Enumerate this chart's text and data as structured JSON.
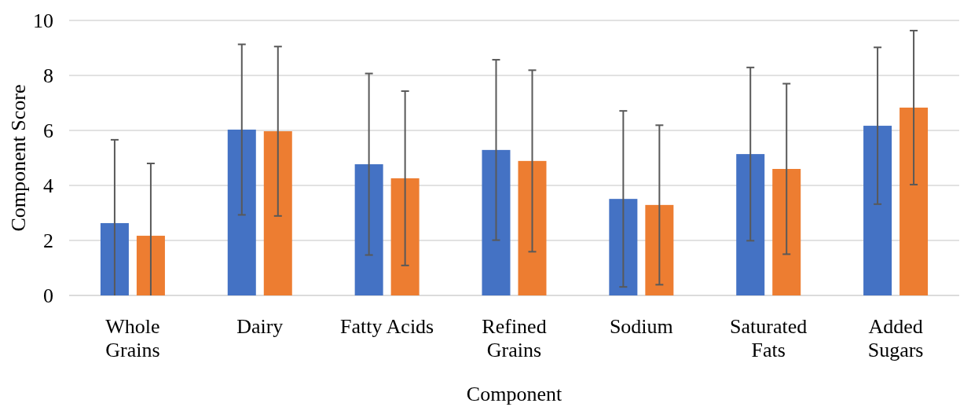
{
  "chart_data": {
    "type": "bar",
    "xlabel": "Component",
    "ylabel": "Component Score",
    "categories": [
      "Whole\nGrains",
      "Dairy",
      "Fatty Acids",
      "Refined\nGrains",
      "Sodium",
      "Saturated\nFats",
      "Added\nSugars"
    ],
    "series": [
      {
        "color": "#4472c4",
        "values": [
          2.63,
          6.03,
          4.77,
          5.29,
          3.51,
          5.14,
          6.17
        ],
        "errors": [
          [
            0,
            5.66
          ],
          3.1,
          3.3,
          3.28,
          3.2,
          3.15,
          2.85
        ]
      },
      {
        "color": "#ed7d31",
        "values": [
          2.17,
          5.97,
          4.26,
          4.89,
          3.29,
          4.6,
          6.83
        ],
        "errors": [
          [
            0,
            4.8
          ],
          3.08,
          3.17,
          3.3,
          2.9,
          3.1,
          2.8
        ]
      }
    ],
    "ylim": [
      0,
      10
    ],
    "yticks": [
      0,
      2,
      4,
      6,
      8,
      10
    ],
    "grid": "y"
  }
}
